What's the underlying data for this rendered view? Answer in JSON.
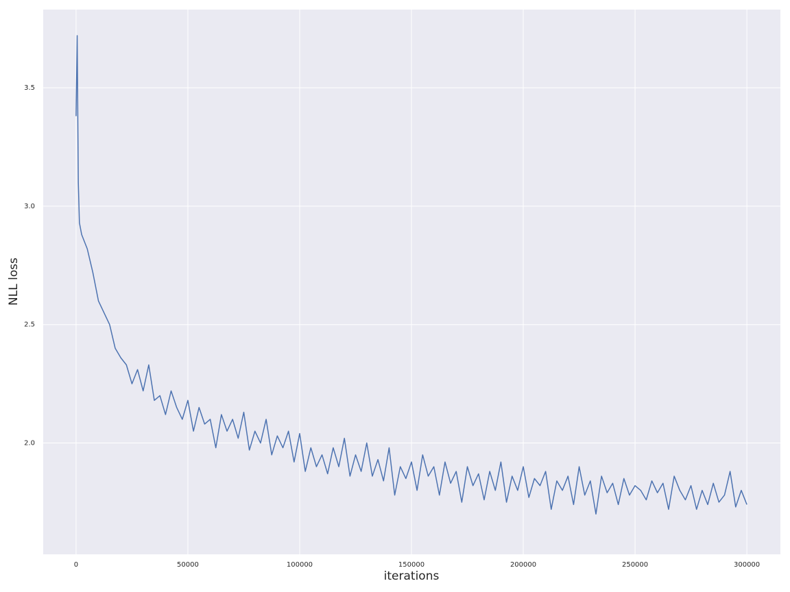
{
  "chart_data": {
    "type": "line",
    "x_label": "iterations",
    "y_label": "NLL loss",
    "x": [
      0,
      500,
      1000,
      1500,
      2500,
      5000,
      7500,
      10000,
      12500,
      15000,
      17500,
      20000,
      22500,
      25000,
      27500,
      30000,
      32500,
      35000,
      37500,
      40000,
      42500,
      45000,
      47500,
      50000,
      52500,
      55000,
      57500,
      60000,
      62500,
      65000,
      67500,
      70000,
      72500,
      75000,
      77500,
      80000,
      82500,
      85000,
      87500,
      90000,
      92500,
      95000,
      97500,
      100000,
      102500,
      105000,
      107500,
      110000,
      112500,
      115000,
      117500,
      120000,
      122500,
      125000,
      127500,
      130000,
      132500,
      135000,
      137500,
      140000,
      142500,
      145000,
      147500,
      150000,
      152500,
      155000,
      157500,
      160000,
      162500,
      165000,
      167500,
      170000,
      172500,
      175000,
      177500,
      180000,
      182500,
      185000,
      187500,
      190000,
      192500,
      195000,
      197500,
      200000,
      202500,
      205000,
      207500,
      210000,
      212500,
      215000,
      217500,
      220000,
      222500,
      225000,
      227500,
      230000,
      232500,
      235000,
      237500,
      240000,
      242500,
      245000,
      247500,
      250000,
      252500,
      255000,
      257500,
      260000,
      262500,
      265000,
      267500,
      270000,
      272500,
      275000,
      277500,
      280000,
      282500,
      285000,
      287500,
      290000,
      292500,
      295000,
      297500,
      300000
    ],
    "series": [
      {
        "color": "#4c72b0",
        "values": [
          3.38,
          3.72,
          3.1,
          2.93,
          2.88,
          2.82,
          2.72,
          2.6,
          2.55,
          2.5,
          2.4,
          2.36,
          2.33,
          2.25,
          2.31,
          2.22,
          2.33,
          2.18,
          2.2,
          2.12,
          2.22,
          2.15,
          2.1,
          2.18,
          2.05,
          2.15,
          2.08,
          2.1,
          1.98,
          2.12,
          2.05,
          2.1,
          2.02,
          2.13,
          1.97,
          2.05,
          2.0,
          2.1,
          1.95,
          2.03,
          1.98,
          2.05,
          1.92,
          2.04,
          1.88,
          1.98,
          1.9,
          1.95,
          1.87,
          1.98,
          1.9,
          2.02,
          1.86,
          1.95,
          1.88,
          2.0,
          1.86,
          1.93,
          1.84,
          1.98,
          1.78,
          1.9,
          1.85,
          1.92,
          1.8,
          1.95,
          1.86,
          1.9,
          1.78,
          1.92,
          1.83,
          1.88,
          1.75,
          1.9,
          1.82,
          1.87,
          1.76,
          1.88,
          1.8,
          1.92,
          1.75,
          1.86,
          1.8,
          1.9,
          1.77,
          1.85,
          1.82,
          1.88,
          1.72,
          1.84,
          1.8,
          1.86,
          1.74,
          1.9,
          1.78,
          1.84,
          1.7,
          1.86,
          1.79,
          1.83,
          1.74,
          1.85,
          1.78,
          1.82,
          1.8,
          1.76,
          1.84,
          1.79,
          1.83,
          1.72,
          1.86,
          1.8,
          1.76,
          1.82,
          1.72,
          1.8,
          1.74,
          1.83,
          1.75,
          1.78,
          1.88,
          1.73,
          1.8,
          1.74
        ]
      }
    ],
    "xlim": [
      -14700,
      315000
    ],
    "ylim": [
      1.53,
      3.83
    ],
    "xticks": [
      0,
      50000,
      100000,
      150000,
      200000,
      250000,
      300000
    ],
    "yticks": [
      {
        "value": 2.0,
        "label": "2.0"
      },
      2.5,
      {
        "value": 3.0,
        "label": "3.0"
      },
      3.5
    ],
    "grid": true,
    "background": "#eaeaf2"
  }
}
